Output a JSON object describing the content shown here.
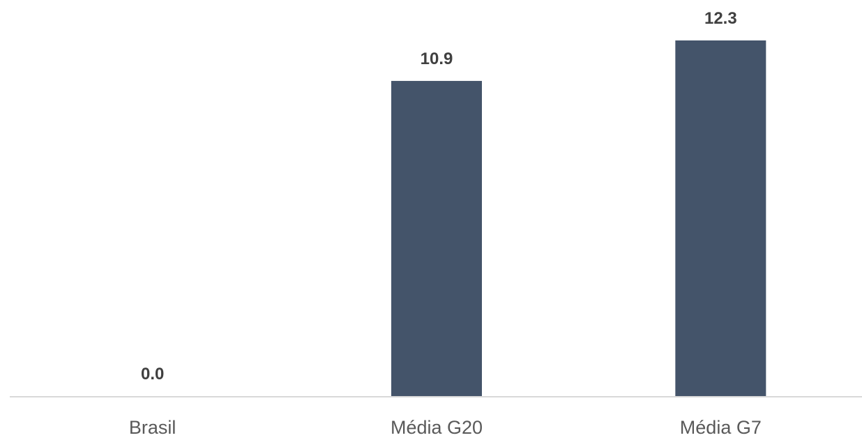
{
  "chart_data": {
    "type": "bar",
    "categories": [
      "Brasil",
      "Média G20",
      "Média G7"
    ],
    "values": [
      0.0,
      10.9,
      12.3
    ],
    "data_labels": [
      "0.0",
      "10.9",
      "12.3"
    ],
    "title": "",
    "xlabel": "",
    "ylabel": "",
    "ylim": [
      0,
      12.3
    ],
    "grid": false,
    "legend": "none"
  },
  "colors": {
    "bar": "#44546a",
    "axis": "#d9d9d9",
    "data_label": "#404040",
    "category_label": "#595959"
  }
}
